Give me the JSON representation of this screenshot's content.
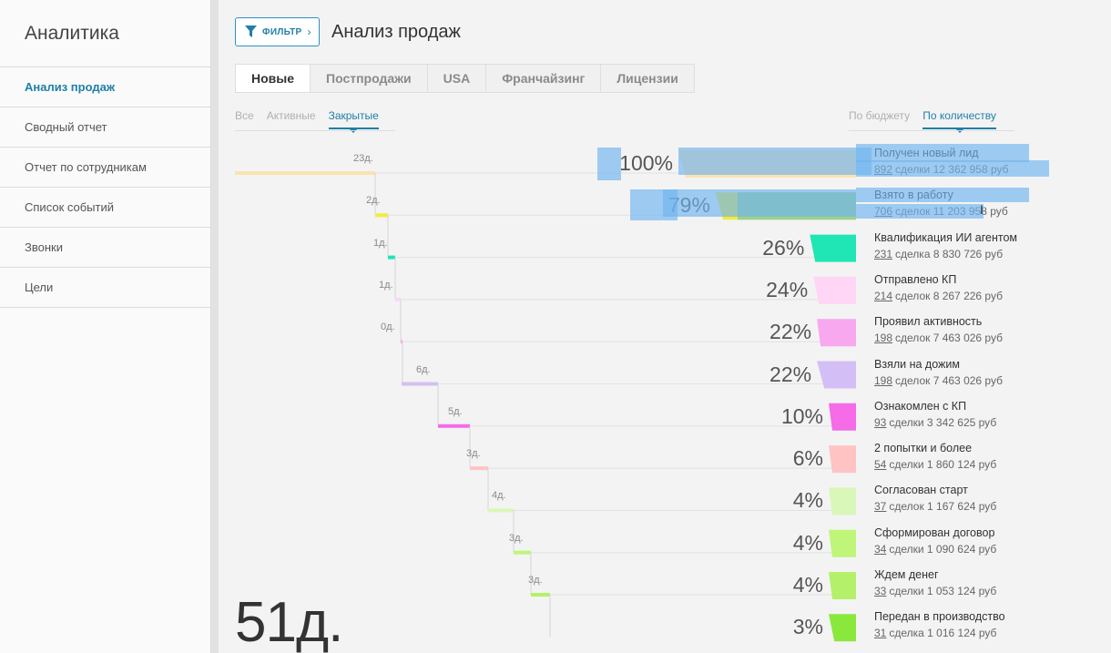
{
  "sidebar": {
    "title": "Аналитика",
    "items": [
      {
        "label": "Анализ продаж",
        "active": true
      },
      {
        "label": "Сводный отчет",
        "active": false
      },
      {
        "label": "Отчет по сотрудникам",
        "active": false
      },
      {
        "label": "Список событий",
        "active": false
      },
      {
        "label": "Звонки",
        "active": false
      },
      {
        "label": "Цели",
        "active": false
      }
    ]
  },
  "header": {
    "filter_label": "ФИЛЬТР",
    "title": "Анализ продаж"
  },
  "tabs": [
    {
      "label": "Новые",
      "active": true
    },
    {
      "label": "Постпродажи",
      "active": false
    },
    {
      "label": "USA",
      "active": false
    },
    {
      "label": "Франчайзинг",
      "active": false
    },
    {
      "label": "Лицензии",
      "active": false
    }
  ],
  "status_filter": [
    {
      "label": "Все",
      "active": false
    },
    {
      "label": "Активные",
      "active": false
    },
    {
      "label": "Закрытые",
      "active": true
    }
  ],
  "metric_toggle": [
    {
      "label": "По бюджету",
      "active": false
    },
    {
      "label": "По количеству",
      "active": true
    }
  ],
  "funnel": {
    "total_duration": "51д.",
    "stages": [
      {
        "name": "Получен новый лид",
        "count": "892",
        "details": "сделки 12 362 958 руб",
        "percent": "100%",
        "value": 100,
        "days": "23д.",
        "color": "#fbe3b0"
      },
      {
        "name": "Взято в работу",
        "count": "706",
        "details": "сделок 11 203 958 руб",
        "percent": "79%",
        "value": 79,
        "days": "2д.",
        "color": "#f2ec3a",
        "color2": "#9ed08c"
      },
      {
        "name": "Квалификация ИИ агентом",
        "count": "231",
        "details": "сделка 8 830 726 руб",
        "percent": "26%",
        "value": 26,
        "days": "1д.",
        "color": "#1fe6b4"
      },
      {
        "name": "Отправлено КП",
        "count": "214",
        "details": "сделок 8 267 226 руб",
        "percent": "24%",
        "value": 24,
        "days": "1д.",
        "color": "#ffd6f6"
      },
      {
        "name": "Проявил активность",
        "count": "198",
        "details": "сделок 7 463 026 руб",
        "percent": "22%",
        "value": 22,
        "days": "0д.",
        "color": "#f8a8ef"
      },
      {
        "name": "Взяли на дожим",
        "count": "198",
        "details": "сделок 7 463 026 руб",
        "percent": "22%",
        "value": 22,
        "days": "6д.",
        "color": "#d3bff5"
      },
      {
        "name": "Ознакомлен с КП",
        "count": "93",
        "details": "сделки 3 342 625 руб",
        "percent": "10%",
        "value": 10,
        "days": "5д.",
        "color": "#f56be8"
      },
      {
        "name": "2 попытки и более",
        "count": "54",
        "details": "сделки 1 860 124 руб",
        "percent": "6%",
        "value": 6,
        "days": "3д.",
        "color": "#ffc3c3"
      },
      {
        "name": "Согласован старт",
        "count": "37",
        "details": "сделок 1 167 624 руб",
        "percent": "4%",
        "value": 4,
        "days": "4д.",
        "color": "#d9f7b8"
      },
      {
        "name": "Сформирован договор",
        "count": "34",
        "details": "сделки 1 090 624 руб",
        "percent": "4%",
        "value": 4,
        "days": "3д.",
        "color": "#bff578"
      },
      {
        "name": "Ждем денег",
        "count": "33",
        "details": "сделки 1 053 124 руб",
        "percent": "4%",
        "value": 4,
        "days": "3д.",
        "color": "#b5f06a"
      },
      {
        "name": "Передан в производство",
        "count": "31",
        "details": "сделка 1 016 124 руб",
        "percent": "3%",
        "value": 3,
        "color": "#8ae83c"
      }
    ]
  }
}
